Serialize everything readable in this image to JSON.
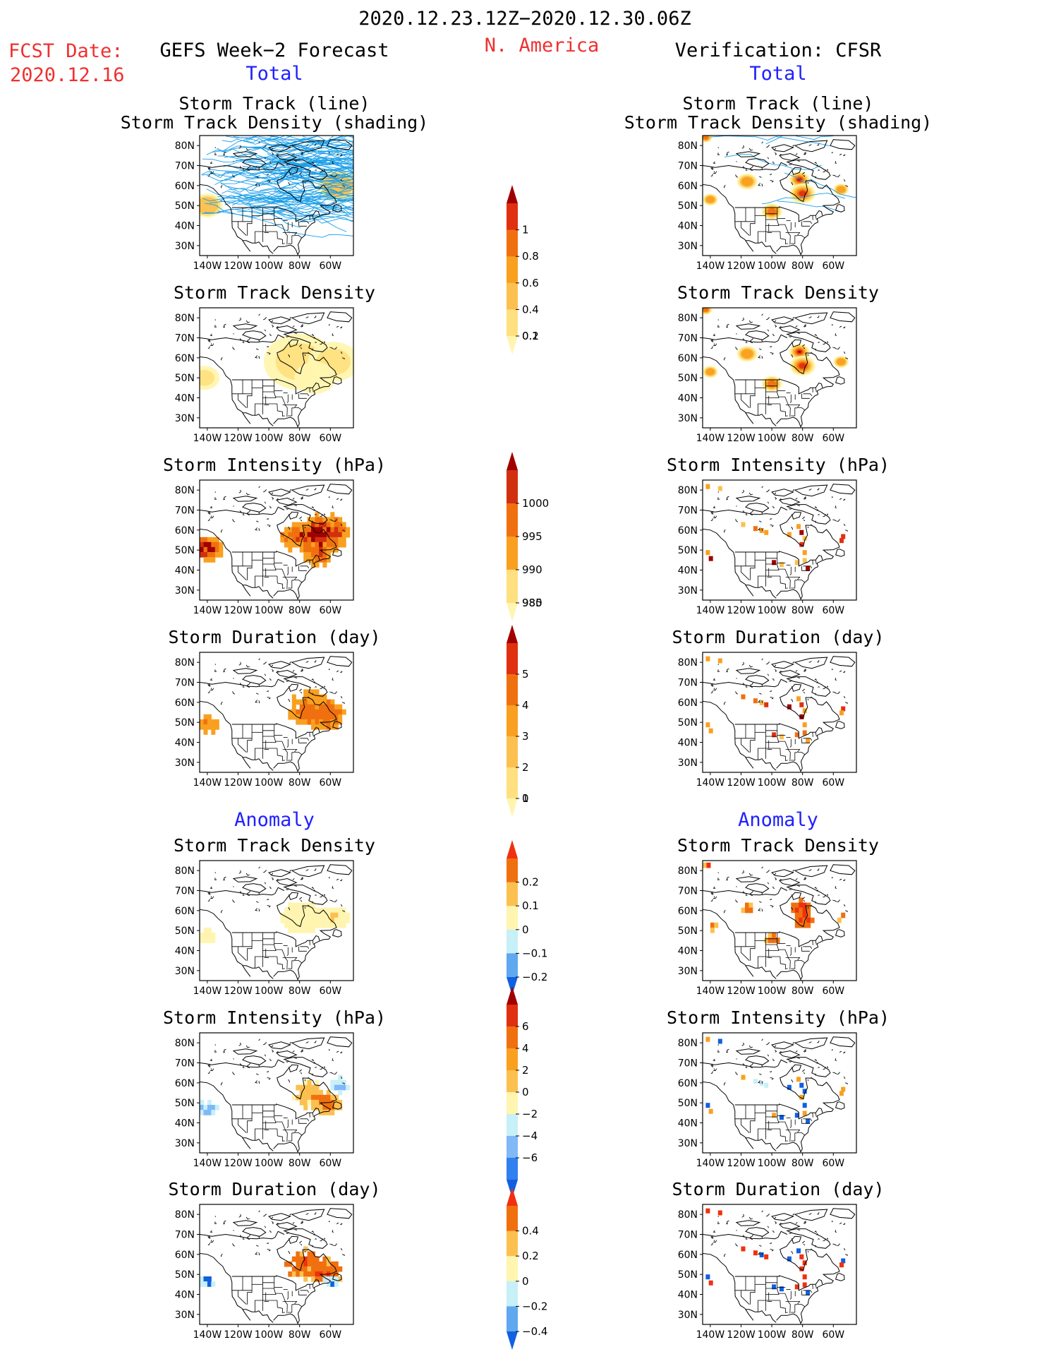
{
  "header": {
    "date_range": "2020.12.23.12Z−2020.12.30.06Z",
    "region": "N. America",
    "fcst_label": "FCST Date:",
    "fcst_date": "2020.12.16",
    "left_title": "GEFS Week−2 Forecast",
    "right_title": "Verification: CFSR",
    "total_label": "Total",
    "anomaly_label": "Anomaly"
  },
  "axes": {
    "lat_ticks": [
      "80N",
      "70N",
      "60N",
      "50N",
      "40N",
      "30N"
    ],
    "lon_ticks": [
      "140W",
      "120W",
      "100W",
      "80W",
      "60W"
    ]
  },
  "panel_titles": {
    "track": "Storm Track (line)\nStorm Track Density (shading)",
    "density": "Storm Track Density",
    "intensity": "Storm Intensity (hPa)",
    "duration": "Storm Duration (day)"
  },
  "colorbars": {
    "density_total": {
      "ticks": [
        "1",
        "0.8",
        "0.6",
        "0.4",
        "0.2",
        "0.1"
      ],
      "colors": [
        "#fff5b0",
        "#ffe080",
        "#fcc050",
        "#f9a020",
        "#f07010",
        "#e03010",
        "#a00000"
      ]
    },
    "intensity_total": {
      "ticks": [
        "1000",
        "995",
        "990",
        "985",
        "980"
      ],
      "colors": [
        "#fff5b0",
        "#ffe080",
        "#f9a020",
        "#f07010",
        "#d03010",
        "#a00000"
      ]
    },
    "duration_total": {
      "ticks": [
        "5",
        "4",
        "3",
        "2",
        "1",
        "0"
      ],
      "colors": [
        "#fff5b0",
        "#ffe080",
        "#fcc050",
        "#f9a020",
        "#f07010",
        "#e03010",
        "#a00000"
      ]
    },
    "density_anom": {
      "ticks": [
        "0.2",
        "0.1",
        "0",
        "−0.1",
        "−0.2"
      ],
      "colors": [
        "#1060e0",
        "#60a8f0",
        "#c8f0f8",
        "#fff5b0",
        "#fcc050",
        "#f07010",
        "#f03010"
      ]
    },
    "intensity_anom": {
      "ticks": [
        "6",
        "4",
        "2",
        "0",
        "−2",
        "−4",
        "−6"
      ],
      "colors": [
        "#1060e0",
        "#3080f0",
        "#80b8f8",
        "#c8f0f8",
        "#fff5b0",
        "#fcc050",
        "#f9a020",
        "#f07010",
        "#e03010",
        "#a00000"
      ]
    },
    "duration_anom": {
      "ticks": [
        "0.4",
        "0.2",
        "0",
        "−0.2",
        "−0.4"
      ],
      "colors": [
        "#1060e0",
        "#60a8f0",
        "#c8f0f8",
        "#fff5b0",
        "#fcc050",
        "#f07010",
        "#f03010"
      ]
    }
  },
  "colors": {
    "track_line": "#1a9ee8",
    "title_red": "#f03030",
    "title_blue": "#2020ff"
  }
}
